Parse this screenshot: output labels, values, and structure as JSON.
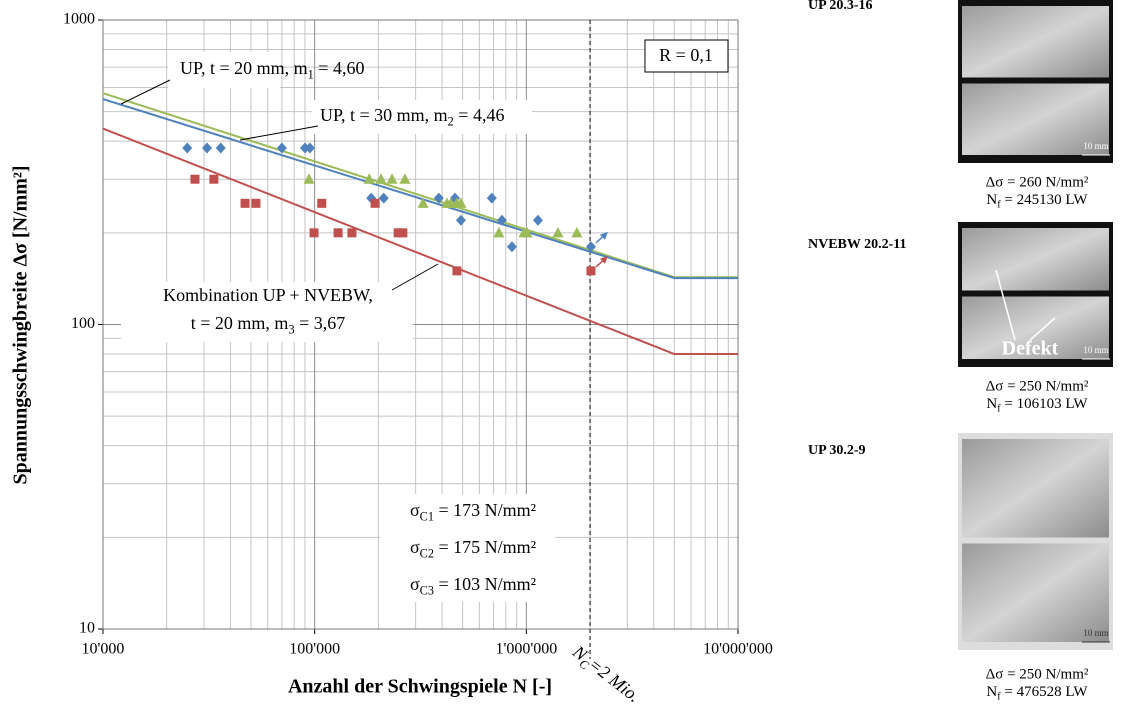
{
  "chart_data": {
    "type": "scatter",
    "x_label": "Anzahl der Schwingspiele N [-]",
    "y_label": "Spannungsschwingbreite  Δσ [N/mm²]",
    "log_x": true,
    "log_y": true,
    "grid": true,
    "xlim": [
      10000,
      10000000
    ],
    "xticks": [
      {
        "value": 10000,
        "label": "10'000"
      },
      {
        "value": 100000,
        "label": "100'000"
      },
      {
        "value": 1000000,
        "label": "1'000'000"
      },
      {
        "value": 10000000,
        "label": "10'000'000"
      }
    ],
    "x_minor_ticks": [
      20000,
      30000,
      40000,
      50000,
      60000,
      70000,
      80000,
      90000,
      200000,
      300000,
      400000,
      500000,
      600000,
      700000,
      800000,
      900000,
      2000000,
      3000000,
      4000000,
      5000000,
      6000000,
      7000000,
      8000000,
      9000000
    ],
    "ylim": [
      10,
      1000
    ],
    "yticks": [
      10,
      100,
      1000
    ],
    "y_minor_ticks": [
      20,
      30,
      40,
      50,
      60,
      70,
      80,
      90,
      200,
      300,
      400,
      500,
      600,
      700,
      800,
      900
    ],
    "reference_x": 2000000,
    "series": [
      {
        "marker": "diamond",
        "color": "#4f81bd",
        "x": [
          25000,
          31000,
          36000,
          70000,
          90000,
          95000,
          185000,
          212000,
          386000,
          460000,
          491000,
          687000,
          767000,
          855000,
          1135000,
          2020000
        ],
        "values": [
          380,
          380,
          380,
          380,
          380,
          380,
          260,
          260,
          260,
          260,
          220,
          260,
          220,
          180,
          220,
          180
        ]
      },
      {
        "marker": "triangle",
        "color": "#9bbb59",
        "x": [
          94000,
          181000,
          206000,
          232000,
          267000,
          325000,
          422000,
          440000,
          470000,
          491000,
          742000,
          975000,
          1007000,
          1410000,
          1733000
        ],
        "values": [
          300,
          300,
          300,
          300,
          300,
          250,
          250,
          250,
          250,
          250,
          200,
          200,
          200,
          200,
          200
        ]
      },
      {
        "marker": "square",
        "color": "#c0504d",
        "x": [
          27200,
          33400,
          46900,
          52800,
          108000,
          193000,
          99300,
          129000,
          150000,
          248000,
          261000,
          470000,
          2020000
        ],
        "values": [
          300,
          300,
          250,
          250,
          250,
          250,
          200,
          200,
          200,
          200,
          200,
          150,
          150
        ]
      },
      {
        "marker": "line",
        "color": "#9bbb59",
        "x": [
          10000,
          5000000,
          10000000
        ],
        "values": [
          575,
          143,
          143
        ]
      },
      {
        "marker": "line",
        "color": "#4f81bd",
        "x": [
          10000,
          5000000,
          10000000
        ],
        "values": [
          550,
          142,
          142
        ]
      },
      {
        "marker": "line",
        "color": "#c0504d",
        "x": [
          10000,
          5000000,
          10000000
        ],
        "values": [
          440,
          80,
          80
        ]
      }
    ],
    "annotations": [
      [
        "UP, t  = 20 mm, m",
        "1",
        " = 4,60"
      ],
      [
        "UP, t = 30 mm, m",
        "2",
        " = 4,46"
      ],
      [
        "Kombination UP + NVEBW,"
      ],
      [
        "t = 20 mm, m",
        "3",
        " = 3,67"
      ],
      [
        "σ",
        "C1",
        " = 173 N/mm²"
      ],
      [
        "σ",
        "C2",
        " = 175 N/mm²"
      ],
      [
        "σ",
        "C3",
        " = 103 N/mm²"
      ],
      [
        "R = 0,1"
      ],
      [
        "N",
        "C",
        "=2 Mio."
      ]
    ]
  },
  "specimens": [
    {
      "label": "UP 20.3-16",
      "scale": "10 mm",
      "stress": "Δσ  = 260 N/mm²",
      "cycles": [
        "N",
        "f",
        " = 245130 LW"
      ]
    },
    {
      "label": "NVEBW 20.2-11",
      "scale": "10 mm",
      "defect": "Defekt",
      "stress": "Δσ  = 250 N/mm²",
      "cycles": [
        "N",
        "f",
        " = 106103 LW"
      ]
    },
    {
      "label": "UP 30.2-9",
      "scale": "10 mm",
      "stress": "Δσ  = 250 N/mm²",
      "cycles": [
        "N",
        "f",
        " = 476528 LW"
      ]
    }
  ]
}
